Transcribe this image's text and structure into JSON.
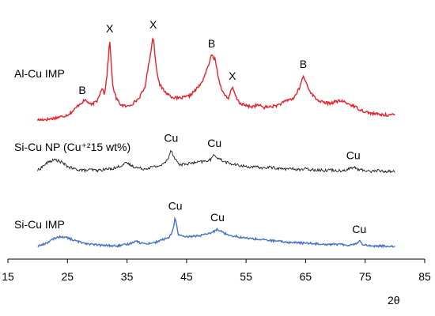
{
  "chart_data": {
    "type": "line",
    "title": "",
    "xlabel": "2θ",
    "ylabel": "",
    "xlim": [
      15,
      85
    ],
    "x_ticks": [
      "15",
      "25",
      "35",
      "45",
      "55",
      "65",
      "75",
      "85"
    ],
    "grid": false,
    "legend": "none",
    "series": [
      {
        "name": "Al-Cu IMP",
        "color": "#e8202a",
        "x": [
          20,
          22,
          24,
          25,
          26,
          27,
          28,
          29,
          30,
          30.8,
          31.2,
          31.6,
          32.1,
          32.6,
          33.2,
          34,
          35,
          36,
          37,
          38,
          38.8,
          39.4,
          39.9,
          40.5,
          41.5,
          42.5,
          43.5,
          44.5,
          45.5,
          46.5,
          47.5,
          48.5,
          49.2,
          49.8,
          50.5,
          51.2,
          52,
          52.7,
          53.4,
          54,
          55,
          56,
          57,
          58,
          59,
          60,
          61,
          62,
          63,
          64,
          64.6,
          65.2,
          66,
          67,
          68,
          69,
          70,
          71,
          72,
          73,
          74,
          75,
          76,
          77,
          78,
          79,
          80
        ],
        "values": [
          0.04,
          0.05,
          0.08,
          0.1,
          0.15,
          0.23,
          0.28,
          0.22,
          0.27,
          0.43,
          0.35,
          0.55,
          1.0,
          0.45,
          0.3,
          0.22,
          0.2,
          0.24,
          0.3,
          0.43,
          0.78,
          1.05,
          0.68,
          0.46,
          0.37,
          0.32,
          0.3,
          0.31,
          0.33,
          0.4,
          0.48,
          0.66,
          0.82,
          0.77,
          0.5,
          0.36,
          0.3,
          0.43,
          0.3,
          0.24,
          0.21,
          0.2,
          0.22,
          0.19,
          0.2,
          0.21,
          0.24,
          0.28,
          0.3,
          0.43,
          0.57,
          0.47,
          0.35,
          0.28,
          0.25,
          0.24,
          0.26,
          0.27,
          0.24,
          0.21,
          0.17,
          0.14,
          0.12,
          0.11,
          0.1,
          0.1,
          0.1
        ]
      },
      {
        "name": "Si-Cu NP (Cu⁺²15 wt%)",
        "color": "#1a1a1a",
        "x": [
          20,
          21,
          22,
          23,
          24,
          25,
          26,
          27,
          28,
          29,
          30,
          31,
          32,
          33,
          34,
          35,
          36,
          37,
          38,
          39,
          40,
          41,
          41.8,
          42.4,
          43,
          43.8,
          45,
          46,
          47,
          48,
          49,
          49.7,
          50.3,
          51,
          52,
          53,
          54,
          55,
          56,
          57,
          58,
          59,
          60,
          61,
          62,
          63,
          64,
          65,
          66,
          67,
          68,
          69,
          70,
          71,
          72,
          73,
          74,
          75,
          76,
          77,
          78,
          79,
          80
        ],
        "values": [
          0.03,
          0.09,
          0.14,
          0.16,
          0.13,
          0.08,
          0.05,
          0.04,
          0.03,
          0.04,
          0.03,
          0.04,
          0.05,
          0.06,
          0.09,
          0.12,
          0.08,
          0.06,
          0.05,
          0.07,
          0.08,
          0.1,
          0.16,
          0.28,
          0.18,
          0.1,
          0.11,
          0.12,
          0.13,
          0.14,
          0.16,
          0.22,
          0.18,
          0.15,
          0.12,
          0.1,
          0.09,
          0.08,
          0.07,
          0.07,
          0.06,
          0.07,
          0.06,
          0.05,
          0.05,
          0.05,
          0.04,
          0.05,
          0.04,
          0.04,
          0.03,
          0.04,
          0.03,
          0.03,
          0.04,
          0.07,
          0.04,
          0.03,
          0.02,
          0.03,
          0.02,
          0.02,
          0.02
        ]
      },
      {
        "name": "Si-Cu IMP",
        "color": "#4472c4",
        "x": [
          20,
          21,
          22,
          23,
          24,
          25,
          26,
          27,
          28,
          29,
          30,
          31,
          32,
          33,
          34,
          35,
          36,
          36.5,
          37,
          38,
          39,
          40,
          41,
          42,
          42.6,
          43.1,
          43.6,
          44.5,
          45.5,
          46.5,
          47.5,
          48.5,
          49.5,
          50.2,
          50.8,
          51.5,
          52.5,
          53.5,
          54.5,
          55.5,
          56.5,
          57.5,
          58.5,
          59.5,
          60.5,
          61.5,
          62.5,
          63.5,
          64.5,
          65.5,
          66.5,
          67.5,
          68.5,
          69.5,
          70.5,
          71.5,
          72.5,
          73.5,
          74,
          74.6,
          75.5,
          76.5,
          77.5,
          78.5,
          80
        ],
        "values": [
          0.02,
          0.05,
          0.1,
          0.16,
          0.18,
          0.16,
          0.12,
          0.09,
          0.07,
          0.05,
          0.04,
          0.03,
          0.03,
          0.02,
          0.03,
          0.05,
          0.08,
          0.12,
          0.08,
          0.06,
          0.07,
          0.09,
          0.13,
          0.16,
          0.25,
          0.5,
          0.22,
          0.17,
          0.18,
          0.19,
          0.2,
          0.22,
          0.26,
          0.31,
          0.27,
          0.23,
          0.2,
          0.18,
          0.16,
          0.15,
          0.14,
          0.13,
          0.12,
          0.11,
          0.1,
          0.09,
          0.08,
          0.08,
          0.07,
          0.07,
          0.06,
          0.06,
          0.05,
          0.05,
          0.05,
          0.04,
          0.04,
          0.06,
          0.11,
          0.05,
          0.03,
          0.02,
          0.02,
          0.02,
          0.02
        ]
      }
    ],
    "annotations": [
      {
        "text": "B",
        "x": 27.5,
        "series": 0
      },
      {
        "text": "X",
        "x": 32.1,
        "series": 0
      },
      {
        "text": "X",
        "x": 39.4,
        "series": 0
      },
      {
        "text": "B",
        "x": 49.2,
        "series": 0
      },
      {
        "text": "X",
        "x": 52.7,
        "series": 0
      },
      {
        "text": "B",
        "x": 64.6,
        "series": 0
      },
      {
        "text": "Cu",
        "x": 42.4,
        "series": 1
      },
      {
        "text": "Cu",
        "x": 49.7,
        "series": 1
      },
      {
        "text": "Cu",
        "x": 73.0,
        "series": 1
      },
      {
        "text": "Cu",
        "x": 43.1,
        "series": 2
      },
      {
        "text": "Cu",
        "x": 50.2,
        "series": 2
      },
      {
        "text": "Cu",
        "x": 74.0,
        "series": 2
      }
    ]
  }
}
